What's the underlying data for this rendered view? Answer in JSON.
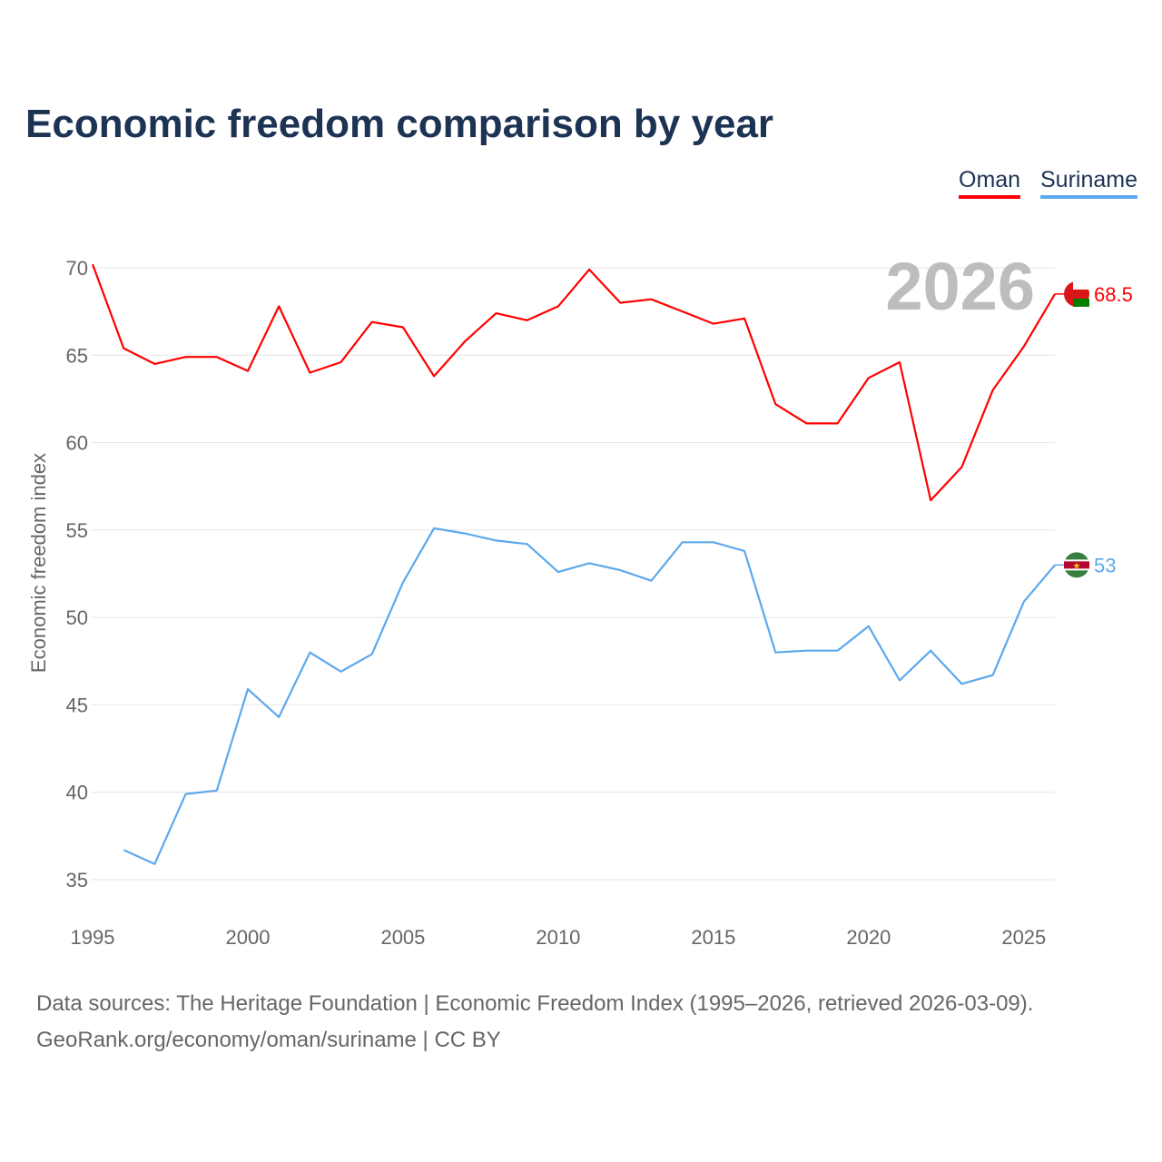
{
  "title": "Economic freedom comparison by year",
  "legend": [
    {
      "label": "Oman",
      "color": "#ff0000"
    },
    {
      "label": "Suriname",
      "color": "#5ca8ee"
    }
  ],
  "source": {
    "line1": "Data sources: The Heritage Foundation | Economic Freedom Index (1995–2026, retrieved 2026-03-09).",
    "line2": "GeoRank.org/economy/oman/suriname | CC BY"
  },
  "chart_data": {
    "type": "line",
    "title": "Economic freedom comparison by year",
    "ylabel": "Economic freedom index",
    "xlabel": "",
    "xlim": [
      1995,
      2026
    ],
    "ylim": [
      35,
      70
    ],
    "xticks": [
      1995,
      2000,
      2005,
      2010,
      2015,
      2020,
      2025
    ],
    "yticks": [
      35,
      40,
      45,
      50,
      55,
      60,
      65,
      70
    ],
    "year_label": "2026",
    "grid": true,
    "legend_position": "top-right",
    "series": [
      {
        "name": "Oman",
        "color": "#ff0000",
        "end_label": "68.5",
        "x": [
          1995,
          1996,
          1997,
          1998,
          1999,
          2000,
          2001,
          2002,
          2003,
          2004,
          2005,
          2006,
          2007,
          2008,
          2009,
          2010,
          2011,
          2012,
          2013,
          2014,
          2015,
          2016,
          2017,
          2018,
          2019,
          2020,
          2021,
          2022,
          2023,
          2024,
          2025,
          2026
        ],
        "values": [
          70.2,
          65.4,
          64.5,
          64.9,
          64.9,
          64.1,
          67.8,
          64.0,
          64.6,
          66.9,
          66.6,
          63.8,
          65.8,
          67.4,
          67.0,
          67.8,
          69.9,
          68.0,
          68.2,
          67.5,
          66.8,
          67.1,
          62.2,
          61.1,
          61.1,
          63.7,
          64.6,
          56.7,
          58.6,
          63.0,
          65.5,
          68.5
        ]
      },
      {
        "name": "Suriname",
        "color": "#5ca8ee",
        "end_label": "53",
        "x": [
          1996,
          1997,
          1998,
          1999,
          2000,
          2001,
          2002,
          2003,
          2004,
          2005,
          2006,
          2007,
          2008,
          2009,
          2010,
          2011,
          2012,
          2013,
          2014,
          2015,
          2016,
          2017,
          2018,
          2019,
          2020,
          2021,
          2022,
          2023,
          2024,
          2025,
          2026
        ],
        "values": [
          36.7,
          35.9,
          39.9,
          40.1,
          45.9,
          44.3,
          48.0,
          46.9,
          47.9,
          52.0,
          55.1,
          54.8,
          54.4,
          54.2,
          52.6,
          53.1,
          52.7,
          52.1,
          54.3,
          54.3,
          53.8,
          48.0,
          48.1,
          48.1,
          49.5,
          46.4,
          48.1,
          46.2,
          46.7,
          50.9,
          53.0
        ]
      }
    ]
  }
}
